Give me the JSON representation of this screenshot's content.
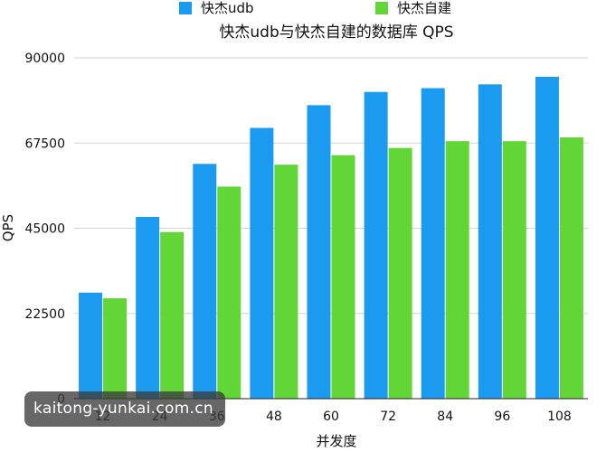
{
  "chart_data": {
    "type": "bar",
    "title": "快杰udb与快杰自建的数据库 QPS",
    "xlabel": "并发度",
    "ylabel": "QPS",
    "categories": [
      "12",
      "24",
      "36",
      "48",
      "60",
      "72",
      "84",
      "96",
      "108"
    ],
    "ylim": [
      0,
      90000
    ],
    "yticks": [
      "0",
      "22500",
      "45000",
      "67500",
      "90000"
    ],
    "legend_position": "top",
    "grid": true,
    "series": [
      {
        "name": "快杰udb",
        "color": "#1a9bf0",
        "values": [
          28000,
          48000,
          62000,
          71500,
          77500,
          81000,
          82000,
          83000,
          85000
        ]
      },
      {
        "name": "快杰自建",
        "color": "#62d637",
        "values": [
          26500,
          44000,
          56000,
          61800,
          64300,
          66200,
          68000,
          68000,
          69000
        ]
      }
    ]
  },
  "watermark": "kaitong-yunkai.com.cn"
}
